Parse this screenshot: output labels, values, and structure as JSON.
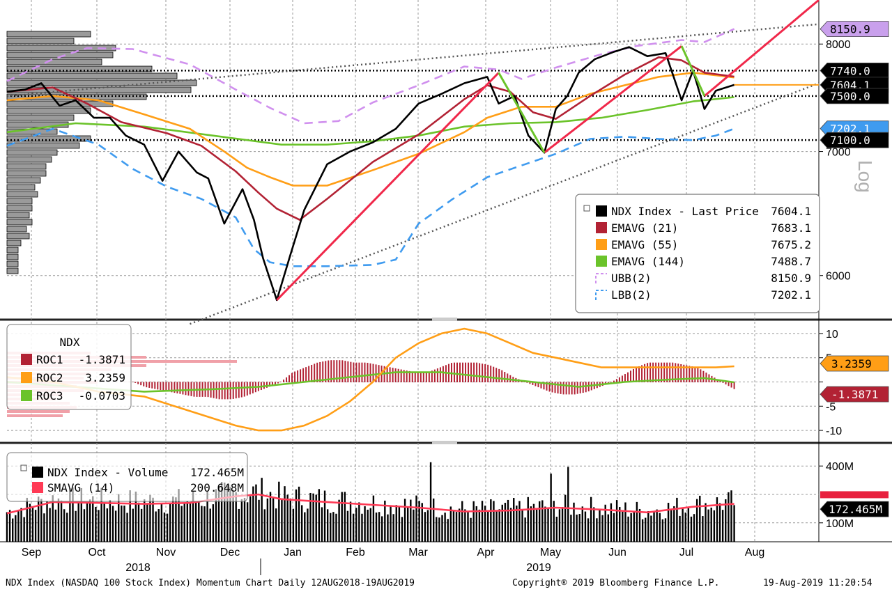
{
  "footer": {
    "left": "NDX Index (NASDAQ 100 Stock Index) Momentum Chart  Daily 12AUG2018-19AUG2019",
    "center": "Copyright® 2019 Bloomberg Finance L.P.",
    "right": "19-Aug-2019 11:20:54"
  },
  "chart_data": [
    {
      "type": "line",
      "panel": "price",
      "scale": "log",
      "ylim": [
        5700,
        8450
      ],
      "y_ticks": [
        6000,
        7000,
        8000
      ],
      "ylabel_side": "Log",
      "x_months": [
        "Sep",
        "Oct",
        "Nov",
        "Dec",
        "Jan",
        "Feb",
        "Mar",
        "Apr",
        "May",
        "Jun",
        "Jul",
        "Aug"
      ],
      "year_labels": [
        "2018",
        "2019"
      ],
      "grid": true,
      "legend_position": "bottom-right",
      "series": [
        {
          "name": "NDX Index - Last Price",
          "legend_value": "7604.1",
          "color": "#000000",
          "x": [
            0,
            8,
            15,
            23,
            30,
            38,
            45,
            52,
            60,
            68,
            75,
            83,
            88,
            95,
            103,
            108,
            112,
            118,
            124,
            130,
            140,
            150,
            160,
            170,
            180,
            190,
            200,
            210,
            215,
            222,
            228,
            235,
            240,
            245,
            250,
            257,
            265,
            272,
            280,
            288,
            295,
            300,
            305,
            310,
            318
          ],
          "y": [
            7540,
            7560,
            7620,
            7410,
            7460,
            7300,
            7300,
            7140,
            7060,
            6750,
            7000,
            6820,
            6770,
            6400,
            6680,
            6430,
            6130,
            5820,
            6160,
            6510,
            6890,
            7000,
            7080,
            7200,
            7430,
            7520,
            7620,
            7680,
            7430,
            7500,
            7140,
            6990,
            7380,
            7500,
            7720,
            7850,
            7920,
            7970,
            7880,
            7910,
            7460,
            7740,
            7380,
            7550,
            7604
          ]
        },
        {
          "name": "EMAVG (21)",
          "legend_value": "7683.1",
          "color": "#b22234",
          "x": [
            0,
            20,
            35,
            50,
            70,
            85,
            100,
            110,
            118,
            128,
            140,
            160,
            180,
            200,
            210,
            220,
            230,
            240,
            255,
            270,
            285,
            295,
            305,
            318
          ],
          "y": [
            7540,
            7580,
            7430,
            7260,
            7160,
            7050,
            6830,
            6650,
            6520,
            6430,
            6600,
            6910,
            7150,
            7470,
            7600,
            7540,
            7350,
            7290,
            7500,
            7700,
            7870,
            7840,
            7720,
            7683
          ]
        },
        {
          "name": "EMAVG (55)",
          "legend_value": "7675.2",
          "color": "#ff9e16",
          "x": [
            0,
            20,
            40,
            60,
            80,
            95,
            105,
            115,
            125,
            140,
            160,
            180,
            200,
            210,
            225,
            240,
            255,
            270,
            285,
            300,
            318
          ],
          "y": [
            7460,
            7500,
            7460,
            7330,
            7200,
            7000,
            6860,
            6780,
            6710,
            6710,
            6840,
            6980,
            7170,
            7300,
            7400,
            7400,
            7520,
            7600,
            7680,
            7720,
            7675
          ]
        },
        {
          "name": "EMAVG (144)",
          "legend_value": "7488.7",
          "color": "#6bc32a",
          "x": [
            0,
            30,
            60,
            90,
            120,
            140,
            160,
            180,
            200,
            220,
            240,
            260,
            280,
            300,
            318
          ],
          "y": [
            7170,
            7250,
            7220,
            7140,
            7060,
            7060,
            7090,
            7140,
            7220,
            7250,
            7260,
            7300,
            7370,
            7450,
            7489
          ]
        },
        {
          "name": "UBB(2)",
          "legend_value": "8150.9",
          "color": "#d090ee",
          "dashed": true,
          "x": [
            0,
            20,
            35,
            55,
            80,
            100,
            115,
            130,
            145,
            160,
            180,
            200,
            215,
            225,
            240,
            260,
            275,
            285,
            295,
            305,
            318
          ],
          "y": [
            7640,
            7850,
            7960,
            7950,
            7800,
            7560,
            7390,
            7250,
            7270,
            7440,
            7600,
            7780,
            7750,
            7660,
            7770,
            7900,
            7980,
            8010,
            8040,
            8020,
            8151
          ]
        },
        {
          "name": "LBB(2)",
          "legend_value": "7202.1",
          "color": "#3f9bef",
          "dashed": true,
          "x": [
            0,
            20,
            40,
            55,
            70,
            85,
            100,
            108,
            115,
            125,
            140,
            160,
            170,
            180,
            195,
            210,
            225,
            240,
            255,
            270,
            285,
            300,
            310,
            318
          ],
          "y": [
            7050,
            7200,
            7060,
            6850,
            6700,
            6600,
            6450,
            6200,
            6100,
            6070,
            6070,
            6080,
            6120,
            6400,
            6600,
            6780,
            6880,
            6980,
            7110,
            7130,
            7110,
            7100,
            7140,
            7202
          ]
        }
      ],
      "price_tags": [
        {
          "label": "8150.9",
          "value": 8150.9,
          "bg": "#c9a0ec",
          "fg": "#000000"
        },
        {
          "label": "7740.0",
          "value": 7740.0,
          "bg": "#000000",
          "fg": "#ffffff"
        },
        {
          "label": "7604.1",
          "value": 7604.1,
          "bg": "#000000",
          "fg": "#ffffff"
        },
        {
          "label": "7500.0",
          "value": 7500.0,
          "bg": "#000000",
          "fg": "#ffffff"
        },
        {
          "label": "7202.1",
          "value": 7202.1,
          "bg": "#3f9bef",
          "fg": "#ffffff"
        },
        {
          "label": "7100.0",
          "value": 7100.0,
          "bg": "#000000",
          "fg": "#ffffff"
        }
      ],
      "hlines": [
        7740,
        7500,
        7100
      ],
      "trend_lines_red": [
        {
          "x": [
            118,
            215
          ],
          "y": [
            5820,
            7720
          ]
        },
        {
          "x": [
            235,
            295
          ],
          "y": [
            6990,
            7980
          ]
        },
        {
          "x": [
            305,
            355
          ],
          "y": [
            7500,
            8450
          ]
        }
      ],
      "trend_lines_green": [
        {
          "x": [
            215,
            235
          ],
          "y": [
            7720,
            6990
          ]
        },
        {
          "x": [
            295,
            305
          ],
          "y": [
            7980,
            7500
          ]
        }
      ],
      "trend_lines_dotted": [
        {
          "x": [
            0,
            355
          ],
          "y": [
            7500,
            8200
          ]
        },
        {
          "x": [
            80,
            355
          ],
          "y": [
            5650,
            7620
          ]
        }
      ]
    },
    {
      "type": "bar",
      "panel": "roc",
      "title": "NDX",
      "ylim": [
        -12,
        12
      ],
      "y_ticks": [
        10,
        5,
        0,
        -5,
        -10
      ],
      "series": [
        {
          "name": "ROC1",
          "legend_value": "-1.3871",
          "color": "#b22234"
        },
        {
          "name": "ROC2",
          "legend_value": "3.2359",
          "color": "#ff9e16",
          "x": [
            0,
            20,
            40,
            60,
            80,
            100,
            110,
            120,
            130,
            140,
            150,
            160,
            170,
            180,
            190,
            200,
            210,
            220,
            230,
            240,
            250,
            260,
            270,
            280,
            290,
            300,
            310,
            318
          ],
          "y": [
            1,
            0,
            -2,
            -3,
            -6,
            -9,
            -10,
            -10,
            -9,
            -7,
            -4,
            0,
            5,
            8,
            10,
            11,
            10,
            8,
            6,
            5,
            4,
            3,
            3,
            3,
            3,
            3,
            3,
            3.2359
          ]
        },
        {
          "name": "ROC3",
          "legend_value": "-0.0703",
          "color": "#6bc32a",
          "x": [
            0,
            30,
            60,
            90,
            110,
            130,
            150,
            170,
            190,
            210,
            230,
            250,
            270,
            290,
            305,
            318
          ],
          "y": [
            0,
            -1,
            -2,
            -1.5,
            -1,
            0,
            1,
            2,
            2,
            1,
            0,
            -1,
            0,
            0.5,
            0.8,
            -0.07
          ]
        }
      ],
      "bars_x_range": [
        50,
        318
      ],
      "bars_y": [
        0,
        0,
        -1,
        -1.5,
        -2,
        -2.5,
        -3,
        -3,
        -3.5,
        -3.5,
        -3,
        -2,
        -1,
        0,
        2,
        3,
        4,
        4.5,
        4.5,
        4,
        4,
        3.5,
        3,
        2.5,
        2,
        2,
        3,
        4,
        4,
        4,
        3.5,
        2.5,
        1,
        0,
        -1,
        -2,
        -2.5,
        -2.5,
        -2,
        -1,
        0,
        1.5,
        3,
        4,
        4,
        4,
        3.5,
        3,
        1.5,
        0,
        -1.4
      ],
      "price_tags": [
        {
          "label": "3.2359",
          "value": 3.2359,
          "bg": "#ff9e16",
          "fg": "#000000"
        },
        {
          "label": "-1.3871",
          "value": -1.3871,
          "bg": "#b22234",
          "fg": "#ffffff"
        }
      ]
    },
    {
      "type": "bar",
      "panel": "volume",
      "ylim": [
        0,
        500
      ],
      "y_ticks": [
        400,
        100
      ],
      "y_tick_labels": [
        "400M",
        "100M"
      ],
      "series": [
        {
          "name": "NDX Index - Volume",
          "legend_value": "172.465M",
          "color": "#000000"
        },
        {
          "name": "SMAVG (14)",
          "legend_value": "200.648M",
          "color": "#ff3a55",
          "x": [
            0,
            20,
            40,
            60,
            80,
            100,
            110,
            120,
            140,
            160,
            180,
            200,
            220,
            240,
            260,
            280,
            300,
            318
          ],
          "y": [
            150,
            210,
            205,
            200,
            205,
            240,
            250,
            225,
            210,
            195,
            180,
            160,
            165,
            180,
            170,
            155,
            185,
            200
          ]
        }
      ],
      "price_tags": [
        {
          "label": "172.465M",
          "value": 172.465,
          "bg": "#000000",
          "fg": "#ffffff"
        }
      ]
    }
  ]
}
